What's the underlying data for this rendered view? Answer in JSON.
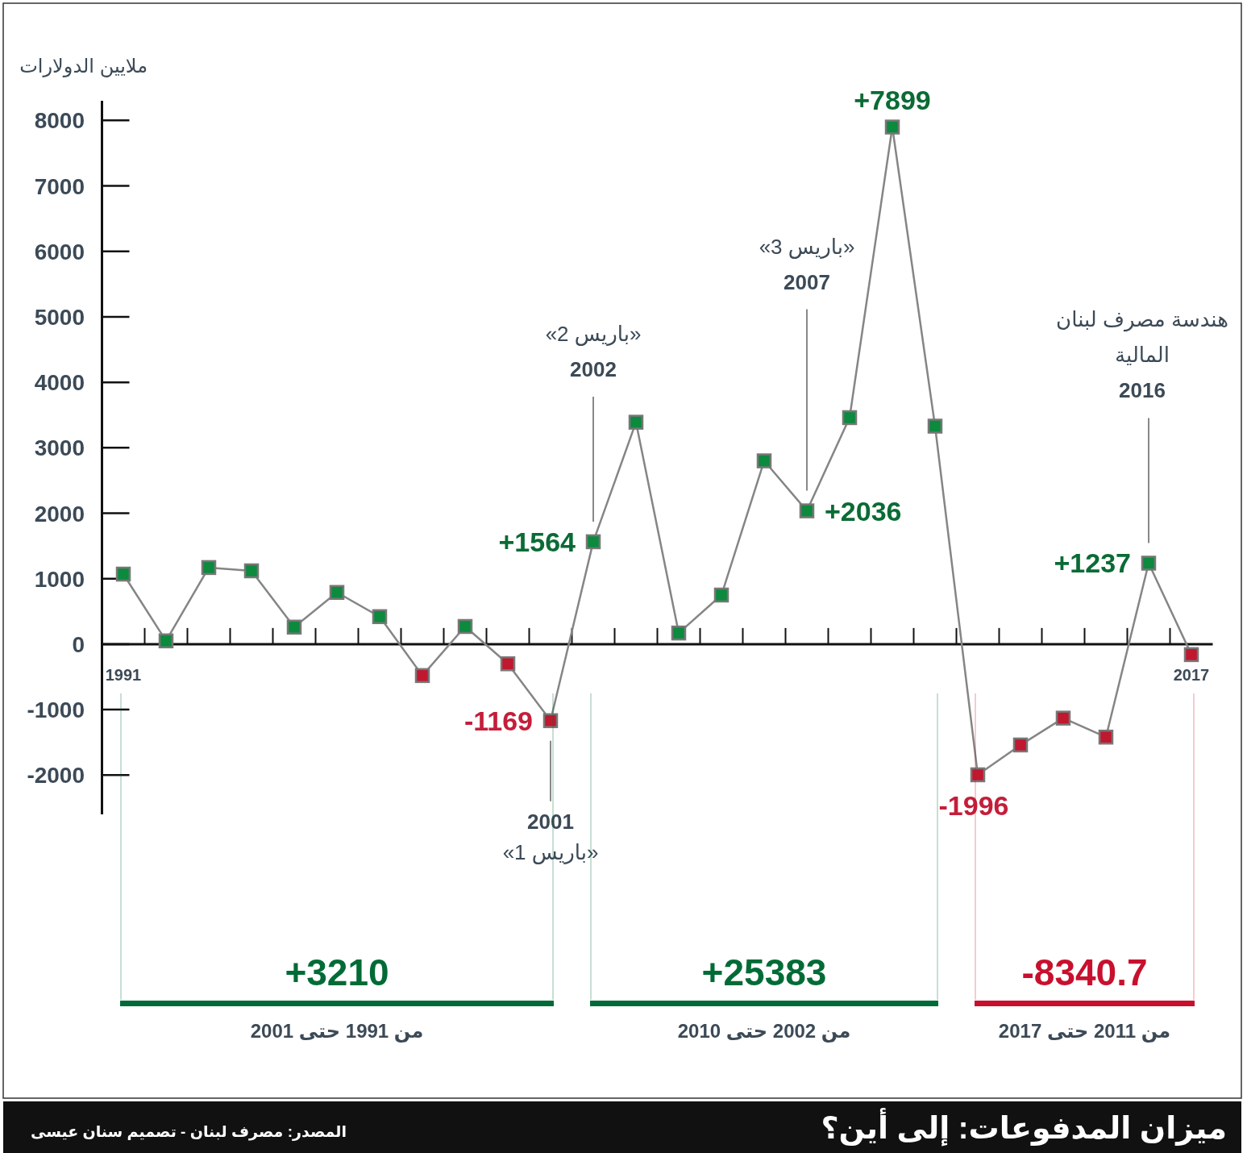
{
  "chart_data": {
    "type": "line",
    "title": "ميزان المدفوعات: إلى أين؟",
    "ylabel": "ملايين الدولارات",
    "categories": [
      "1991",
      null,
      null,
      null,
      null,
      null,
      null,
      null,
      null,
      null,
      null,
      null,
      null,
      null,
      null,
      null,
      null,
      null,
      null,
      null,
      null,
      null,
      null,
      null,
      null,
      "2017"
    ],
    "series": [
      {
        "color": "#858585",
        "values": [
          1070,
          50,
          1170,
          1120,
          260,
          790,
          420,
          -480,
          270,
          -300,
          -1169,
          1564,
          3390,
          170,
          750,
          2800,
          2036,
          3460,
          7899,
          3330,
          -1996,
          -1540,
          -1130,
          -1420,
          1237,
          -160
        ],
        "colors": [
          "#0c8a3e",
          "#0c8a3e",
          "#0c8a3e",
          "#0c8a3e",
          "#0c8a3e",
          "#0c8a3e",
          "#0c8a3e",
          "#c0182f",
          "#0c8a3e",
          "#c0182f",
          "#c0182f",
          "#0c8a3e",
          "#0c8a3e",
          "#0c8a3e",
          "#0c8a3e",
          "#0c8a3e",
          "#0c8a3e",
          "#0c8a3e",
          "#0c8a3e",
          "#0c8a3e",
          "#c0182f",
          "#c0182f",
          "#c0182f",
          "#c0182f",
          "#0c8a3e",
          "#c0182f"
        ],
        "value_labels": [
          null,
          null,
          null,
          null,
          null,
          null,
          null,
          null,
          null,
          null,
          "-1169",
          "+1564",
          null,
          null,
          null,
          null,
          "+2036",
          null,
          "+7899",
          null,
          "-1996",
          null,
          null,
          null,
          "+1237",
          null
        ]
      }
    ],
    "marker": "square",
    "ylim": [
      -2600,
      8300
    ],
    "yticks": [
      -2000,
      -1000,
      0,
      1000,
      2000,
      3000,
      4000,
      5000,
      6000,
      7000,
      8000
    ],
    "annotations": [
      "2001\n«باريس 1»",
      "«باريس 2»\n2002",
      "«باريس 3»\n2007",
      "هندسة مصرف لبنان\nالمالية\n2016",
      "المصدر: مصرف لبنان - تصميم سنان عيسى",
      "+3210",
      "من 1991 حتى 2001",
      "+25383",
      "من 2002 حتى 2010",
      "-8340.7",
      "من 2011 حتى 2017"
    ]
  }
}
